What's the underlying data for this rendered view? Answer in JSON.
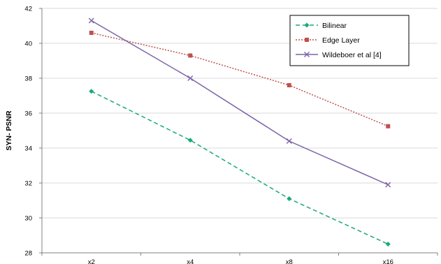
{
  "chart_data": {
    "type": "line",
    "categories": [
      "x2",
      "x4",
      "x8",
      "x16"
    ],
    "ylabel": "SYN- PSNR",
    "xlabel": "",
    "title": "",
    "ylim": [
      28,
      42
    ],
    "yticks": [
      28,
      30,
      32,
      34,
      36,
      38,
      40,
      42
    ],
    "grid": "horizontal",
    "legend_position": "top-right",
    "series": [
      {
        "name": "Bilinear",
        "values": [
          37.25,
          34.45,
          31.1,
          28.5
        ],
        "color": "#1aa97a",
        "style": "dashed",
        "marker": "diamond"
      },
      {
        "name": "Edge Layer",
        "values": [
          40.6,
          39.3,
          37.6,
          35.25
        ],
        "color": "#c0504d",
        "style": "dotted",
        "marker": "square"
      },
      {
        "name": "Wildeboer et al [4]",
        "values": [
          41.3,
          38.0,
          34.4,
          31.9
        ],
        "color": "#7a63a6",
        "style": "solid",
        "marker": "x"
      }
    ]
  }
}
